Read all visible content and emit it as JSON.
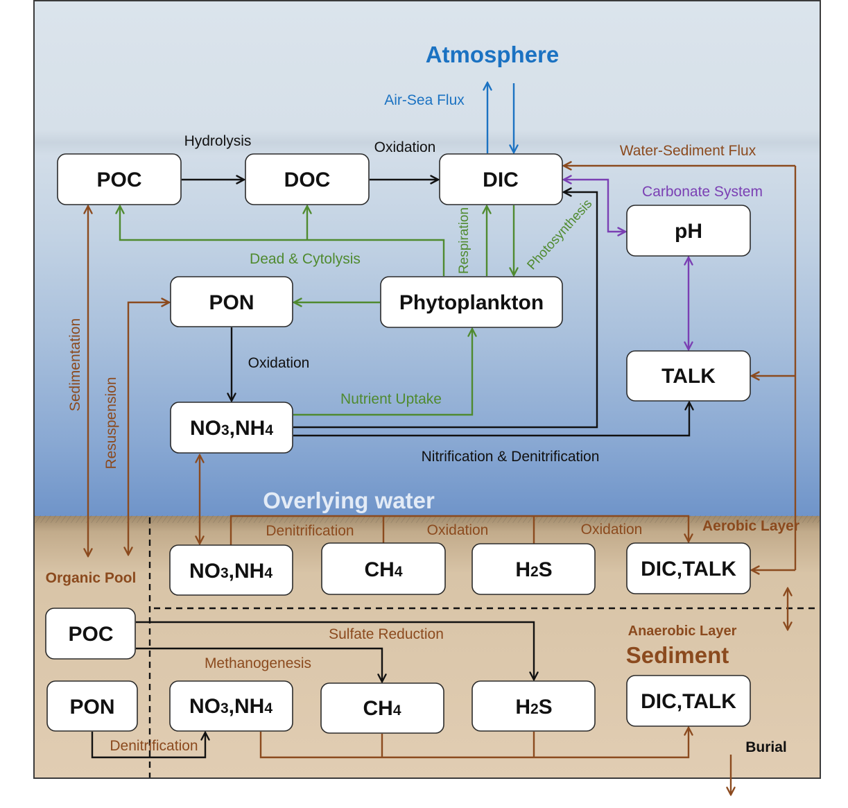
{
  "regions": {
    "atmosphere": "Atmosphere",
    "overlying_water": "Overlying water",
    "sediment": "Sediment",
    "aerobic_layer": "Aerobic Layer",
    "anaerobic_layer": "Anaerobic Layer",
    "organic_pool": "Organic Pool"
  },
  "water_column": {
    "poc": "POC",
    "doc": "DOC",
    "dic": "DIC",
    "ph": "pH",
    "pon": "PON",
    "phytoplankton": "Phytoplankton",
    "talk": "TALK",
    "no3_nh4": "NO3,NH4"
  },
  "aerobic": {
    "no3_nh4": "NO3,NH4",
    "ch4": "CH4",
    "h2s": "H2S",
    "dic_talk": "DIC,TALK"
  },
  "anaerobic": {
    "poc": "POC",
    "pon": "PON",
    "no3_nh4": "NO3,NH4",
    "ch4": "CH4",
    "h2s": "H2S",
    "dic_talk": "DIC,TALK"
  },
  "processes": {
    "air_sea_flux": "Air-Sea Flux",
    "hydrolysis": "Hydrolysis",
    "oxidation_doc": "Oxidation",
    "water_sediment_flux": "Water-Sediment Flux",
    "carbonate_system": "Carbonate System",
    "dead_cytolysis": "Dead & Cytolysis",
    "respiration": "Respiration",
    "photosynthesis": "Photosynthesis",
    "oxidation_pon": "Oxidation",
    "nutrient_uptake": "Nutrient Uptake",
    "nitrification_denitrification": "Nitrification & Denitrification",
    "sedimentation": "Sedimentation",
    "resuspension": "Resuspension",
    "denitrification_aerobic": "Denitrification",
    "oxidation_ch4": "Oxidation",
    "oxidation_h2s": "Oxidation",
    "sulfate_reduction": "Sulfate Reduction",
    "methanogenesis": "Methanogenesis",
    "denitrification_anaerobic": "Denitrification",
    "burial": "Burial"
  },
  "colors": {
    "flux_black": "#111111",
    "air_sea": "#1b72c2",
    "biological": "#4f8a2f",
    "carbonate_system": "#7a3fb3",
    "sediment": "#8b4a1e",
    "overlying_water_label": "#e3ebf6"
  }
}
